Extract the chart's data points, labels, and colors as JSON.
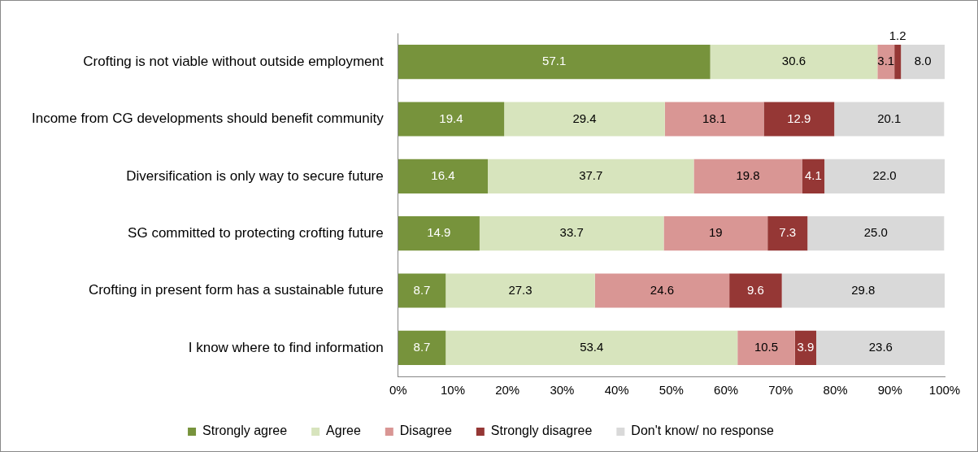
{
  "chart_data": {
    "type": "bar",
    "orientation": "horizontal",
    "stacked": true,
    "categories": [
      "Crofting is not viable without outside employment",
      "Income from CG developments should benefit community",
      "Diversification is only way to secure future",
      "SG committed to protecting crofting future",
      "Crofting in present form has a sustainable future",
      "I know where to find information"
    ],
    "series": [
      {
        "name": "Strongly agree",
        "color": "#77933c",
        "values": [
          57.1,
          19.4,
          16.4,
          14.9,
          8.7,
          8.7
        ],
        "value_labels": [
          "57.1",
          "19.4",
          "16.4",
          "14.9",
          "8.7",
          "8.7"
        ]
      },
      {
        "name": "Agree",
        "color": "#d7e4bd",
        "values": [
          30.6,
          29.4,
          37.7,
          33.7,
          27.3,
          53.4
        ],
        "value_labels": [
          "30.6",
          "29.4",
          "37.7",
          "33.7",
          "27.3",
          "53.4"
        ]
      },
      {
        "name": "Disagree",
        "color": "#d99694",
        "values": [
          3.1,
          18.1,
          19.8,
          19,
          24.6,
          10.5
        ],
        "value_labels": [
          "3.1",
          "18.1",
          "19.8",
          "19",
          "24.6",
          "10.5"
        ]
      },
      {
        "name": "Strongly disagree",
        "color": "#953735",
        "values": [
          1.2,
          12.9,
          4.1,
          7.3,
          9.6,
          3.9
        ],
        "value_labels": [
          "1.2",
          "12.9",
          "4.1",
          "7.3",
          "9.6",
          "3.9"
        ]
      },
      {
        "name": "Don't know/ no response",
        "color": "#d9d9d9",
        "values": [
          8.0,
          20.1,
          22.0,
          25.0,
          29.8,
          23.6
        ],
        "value_labels": [
          "8.0",
          "20.1",
          "22.0",
          "25.0",
          "29.8",
          "23.6"
        ]
      }
    ],
    "xlim": [
      0,
      100
    ],
    "xticks": [
      {
        "value": 0,
        "label": "0%"
      },
      {
        "value": 10,
        "label": "10%"
      },
      {
        "value": 20,
        "label": "20%"
      },
      {
        "value": 30,
        "label": "30%"
      },
      {
        "value": 40,
        "label": "40%"
      },
      {
        "value": 50,
        "label": "50%"
      },
      {
        "value": 60,
        "label": "60%"
      },
      {
        "value": 70,
        "label": "70%"
      },
      {
        "value": 80,
        "label": "80%"
      },
      {
        "value": 90,
        "label": "90%"
      },
      {
        "value": 100,
        "label": "100%"
      }
    ],
    "grid": false,
    "legend": "bottom"
  }
}
